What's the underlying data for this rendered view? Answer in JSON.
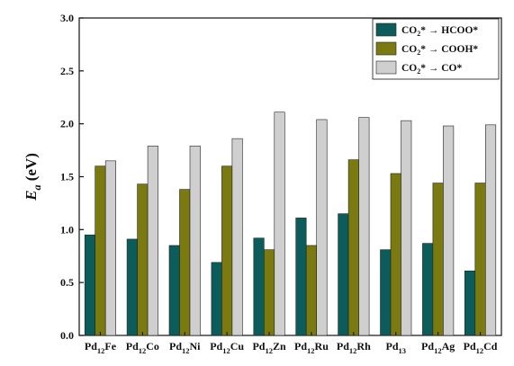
{
  "chart_data": {
    "type": "bar",
    "ylabel": "E",
    "ylabel_sub": "a",
    "ylabel_unit": " (eV)",
    "ylim": [
      0,
      3.0
    ],
    "yticks": [
      "0.0",
      "0.5",
      "1.0",
      "1.5",
      "2.0",
      "2.5",
      "3.0"
    ],
    "categories": [
      {
        "base": "Pd",
        "sub": "12",
        "suffix": "Fe"
      },
      {
        "base": "Pd",
        "sub": "12",
        "suffix": "Co"
      },
      {
        "base": "Pd",
        "sub": "12",
        "suffix": "Ni"
      },
      {
        "base": "Pd",
        "sub": "12",
        "suffix": "Cu"
      },
      {
        "base": "Pd",
        "sub": "12",
        "suffix": "Zn"
      },
      {
        "base": "Pd",
        "sub": "12",
        "suffix": "Ru"
      },
      {
        "base": "Pd",
        "sub": "12",
        "suffix": "Rh"
      },
      {
        "base": "Pd",
        "sub": "13",
        "suffix": ""
      },
      {
        "base": "Pd",
        "sub": "12",
        "suffix": "Ag"
      },
      {
        "base": "Pd",
        "sub": "12",
        "suffix": "Cd"
      }
    ],
    "series": [
      {
        "name": "CO2* → HCOO*",
        "name_parts": [
          "CO",
          "2",
          "* → HCOO*"
        ],
        "color": "#0d5c5c",
        "values": [
          0.95,
          0.91,
          0.85,
          0.69,
          0.92,
          1.11,
          1.15,
          0.81,
          0.87,
          0.61
        ]
      },
      {
        "name": "CO2* → COOH*",
        "name_parts": [
          "CO",
          "2",
          "* → COOH*"
        ],
        "color": "#7a7a10",
        "values": [
          1.6,
          1.43,
          1.38,
          1.6,
          0.81,
          0.85,
          1.66,
          1.53,
          1.44,
          1.44
        ]
      },
      {
        "name": "CO2* → CO*",
        "name_parts": [
          "CO",
          "2",
          "* → CO*"
        ],
        "color": "#cfcfcf",
        "values": [
          1.65,
          1.79,
          1.79,
          1.86,
          2.11,
          2.04,
          2.06,
          2.03,
          1.98,
          1.99
        ]
      }
    ],
    "legend_position": "top-right",
    "grid": false
  }
}
